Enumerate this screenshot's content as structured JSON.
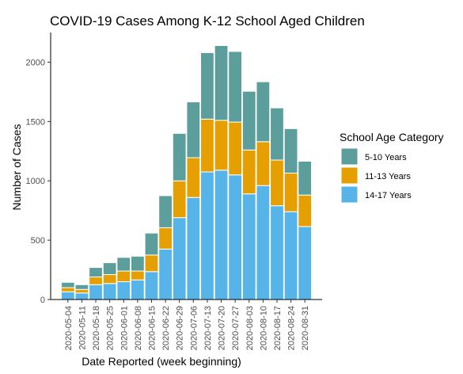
{
  "chart_data": {
    "type": "bar",
    "stacked": true,
    "title": "COVID-19 Cases Among K-12 School Aged Children",
    "xlabel": "Date Reported (week beginning)",
    "ylabel": "Number of Cases",
    "ylim": [
      0,
      2250
    ],
    "yticks": [
      0,
      500,
      1000,
      1500,
      2000
    ],
    "grid": false,
    "legend_position": "right",
    "legend_title": "School Age Category",
    "categories": [
      "2020-05-04",
      "2020-05-11",
      "2020-05-18",
      "2020-05-25",
      "2020-06-01",
      "2020-06-08",
      "2020-06-15",
      "2020-06-22",
      "2020-06-29",
      "2020-07-06",
      "2020-07-13",
      "2020-07-20",
      "2020-07-27",
      "2020-08-03",
      "2020-08-10",
      "2020-08-17",
      "2020-08-24",
      "2020-08-31"
    ],
    "series": [
      {
        "name": "14-17 Years",
        "color": "#56B4E9",
        "values": [
          65,
          55,
          125,
          135,
          150,
          165,
          235,
          425,
          690,
          860,
          1075,
          1090,
          1050,
          890,
          960,
          790,
          740,
          615
        ]
      },
      {
        "name": "11-13 Years",
        "color": "#E69F00",
        "values": [
          35,
          30,
          65,
          75,
          90,
          75,
          140,
          180,
          310,
          335,
          445,
          420,
          445,
          370,
          370,
          385,
          325,
          265
        ]
      },
      {
        "name": "5-10 Years",
        "color": "#5B9E9C",
        "values": [
          45,
          40,
          80,
          100,
          115,
          125,
          185,
          270,
          400,
          470,
          560,
          630,
          595,
          495,
          505,
          440,
          375,
          285
        ]
      }
    ],
    "legend_order": [
      "5-10 Years",
      "11-13 Years",
      "14-17 Years"
    ]
  }
}
